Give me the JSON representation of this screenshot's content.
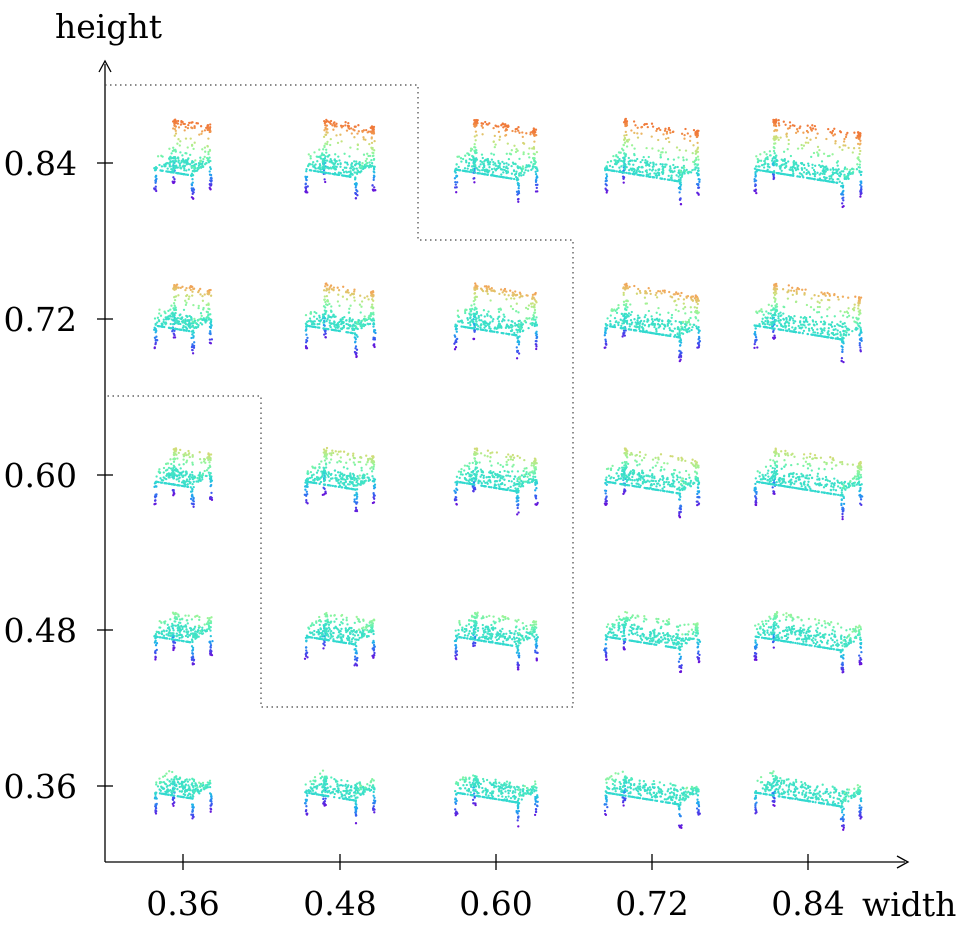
{
  "axes": {
    "x": {
      "label": "width",
      "ticks": [
        "0.36",
        "0.48",
        "0.60",
        "0.72",
        "0.84"
      ]
    },
    "y": {
      "label": "height",
      "ticks": [
        "0.36",
        "0.48",
        "0.60",
        "0.72",
        "0.84"
      ]
    }
  },
  "grid_values": {
    "widths": [
      0.36,
      0.48,
      0.6,
      0.72,
      0.84
    ],
    "heights": [
      0.36,
      0.48,
      0.6,
      0.72,
      0.84
    ]
  },
  "colormap": [
    "#6a0fd8",
    "#3a55f0",
    "#1fa8f0",
    "#2fd8d0",
    "#58f0b8",
    "#9af59a",
    "#cde07a",
    "#f0b060",
    "#f07a3a"
  ]
}
